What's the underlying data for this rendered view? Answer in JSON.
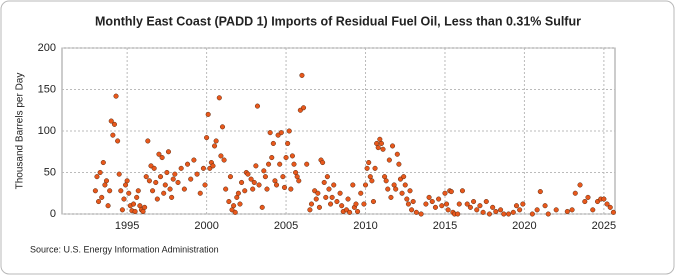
{
  "chart_data": {
    "type": "scatter",
    "title": "Monthly East Coast (PADD 1) Imports of Residual Fuel Oil, Less than 0.31% Sulfur",
    "y_label": "Thousand Barrels per Day",
    "source": "Source: U.S. Energy Information Administration",
    "color": "#e8581c",
    "grid": true,
    "xlim": [
      1990.9,
      2025.7
    ],
    "xticks": [
      1995,
      2000,
      2005,
      2010,
      2015,
      2020,
      2025
    ],
    "ylim": [
      0,
      200
    ],
    "yticks": [
      0,
      50,
      100,
      150,
      200
    ],
    "x": [
      1993.0,
      1993.1,
      1993.2,
      1993.3,
      1993.4,
      1993.5,
      1993.6,
      1993.7,
      1993.8,
      1993.9,
      1994.0,
      1994.1,
      1994.2,
      1994.3,
      1994.4,
      1994.5,
      1994.6,
      1994.7,
      1994.8,
      1994.9,
      1995.0,
      1995.1,
      1995.2,
      1995.3,
      1995.4,
      1995.5,
      1995.6,
      1995.7,
      1995.8,
      1995.9,
      1996.0,
      1996.1,
      1996.2,
      1996.3,
      1996.4,
      1996.5,
      1996.6,
      1996.7,
      1996.8,
      1996.9,
      1997.0,
      1997.1,
      1997.2,
      1997.3,
      1997.4,
      1997.5,
      1997.6,
      1997.7,
      1997.8,
      1997.9,
      1998.0,
      1998.2,
      1998.4,
      1998.6,
      1998.8,
      1999.0,
      1999.2,
      1999.4,
      1999.6,
      1999.8,
      1999.9,
      2000.0,
      2000.1,
      2000.2,
      2000.3,
      2000.4,
      2000.5,
      2000.6,
      2000.8,
      2000.9,
      2001.0,
      2001.1,
      2001.2,
      2001.4,
      2001.5,
      2001.6,
      2001.7,
      2001.8,
      2001.9,
      2002.0,
      2002.1,
      2002.2,
      2002.4,
      2002.5,
      2002.6,
      2002.8,
      2002.9,
      2003.0,
      2003.1,
      2003.2,
      2003.3,
      2003.5,
      2003.6,
      2003.7,
      2003.8,
      2003.9,
      2004.0,
      2004.1,
      2004.2,
      2004.3,
      2004.4,
      2004.5,
      2004.6,
      2004.7,
      2004.8,
      2004.9,
      2005.0,
      2005.1,
      2005.2,
      2005.3,
      2005.4,
      2005.5,
      2005.6,
      2005.7,
      2005.8,
      2005.9,
      2006.0,
      2006.1,
      2006.3,
      2006.5,
      2006.6,
      2006.8,
      2006.9,
      2007.0,
      2007.1,
      2007.2,
      2007.3,
      2007.4,
      2007.5,
      2007.6,
      2007.7,
      2007.8,
      2007.9,
      2008.0,
      2008.2,
      2008.4,
      2008.5,
      2008.6,
      2008.8,
      2008.9,
      2009.0,
      2009.2,
      2009.3,
      2009.4,
      2009.5,
      2009.7,
      2009.9,
      2010.0,
      2010.1,
      2010.2,
      2010.3,
      2010.4,
      2010.5,
      2010.6,
      2010.7,
      2010.8,
      2010.9,
      2011.0,
      2011.1,
      2011.2,
      2011.3,
      2011.4,
      2011.5,
      2011.6,
      2011.7,
      2011.8,
      2011.9,
      2012.0,
      2012.1,
      2012.2,
      2012.3,
      2012.4,
      2012.5,
      2012.6,
      2012.7,
      2012.8,
      2012.9,
      2013.0,
      2013.2,
      2013.5,
      2013.8,
      2014.0,
      2014.2,
      2014.4,
      2014.6,
      2014.8,
      2015.0,
      2015.1,
      2015.2,
      2015.3,
      2015.4,
      2015.5,
      2015.6,
      2015.8,
      2015.9,
      2016.1,
      2016.4,
      2016.6,
      2016.8,
      2017.0,
      2017.2,
      2017.4,
      2017.6,
      2017.8,
      2018.0,
      2018.2,
      2018.5,
      2018.7,
      2019.0,
      2019.3,
      2019.5,
      2019.7,
      2019.9,
      2020.5,
      2020.8,
      2021.0,
      2021.3,
      2021.5,
      2022.0,
      2022.7,
      2023.0,
      2023.2,
      2023.5,
      2023.8,
      2024.0,
      2024.3,
      2024.6,
      2024.8,
      2025.0,
      2025.2,
      2025.4,
      2025.6
    ],
    "values": [
      28,
      45,
      15,
      50,
      20,
      62,
      35,
      40,
      10,
      28,
      112,
      95,
      108,
      142,
      88,
      48,
      28,
      5,
      18,
      35,
      40,
      25,
      10,
      4,
      12,
      3,
      20,
      28,
      10,
      5,
      3,
      8,
      45,
      88,
      40,
      58,
      28,
      55,
      38,
      18,
      72,
      45,
      68,
      25,
      35,
      50,
      75,
      30,
      20,
      42,
      48,
      38,
      55,
      30,
      60,
      42,
      65,
      48,
      25,
      55,
      35,
      92,
      120,
      55,
      62,
      58,
      82,
      88,
      140,
      70,
      105,
      65,
      30,
      15,
      45,
      5,
      10,
      2,
      20,
      25,
      12,
      38,
      28,
      50,
      48,
      42,
      30,
      38,
      58,
      130,
      35,
      8,
      52,
      45,
      30,
      60,
      98,
      68,
      85,
      40,
      35,
      95,
      60,
      98,
      45,
      32,
      68,
      85,
      100,
      30,
      70,
      60,
      50,
      45,
      40,
      125,
      167,
      128,
      60,
      5,
      12,
      28,
      18,
      25,
      8,
      65,
      62,
      38,
      20,
      45,
      30,
      12,
      20,
      35,
      15,
      25,
      10,
      3,
      5,
      18,
      2,
      35,
      8,
      12,
      3,
      25,
      12,
      35,
      55,
      62,
      45,
      40,
      15,
      55,
      85,
      80,
      90,
      85,
      78,
      45,
      40,
      30,
      65,
      20,
      82,
      35,
      30,
      72,
      60,
      42,
      25,
      45,
      35,
      18,
      12,
      28,
      5,
      15,
      2,
      0,
      12,
      20,
      15,
      8,
      18,
      10,
      25,
      12,
      5,
      28,
      27,
      2,
      0,
      0,
      12,
      28,
      12,
      8,
      15,
      5,
      10,
      2,
      15,
      0,
      8,
      3,
      5,
      0,
      0,
      2,
      10,
      5,
      12,
      0,
      5,
      27,
      10,
      0,
      5,
      3,
      5,
      25,
      35,
      15,
      20,
      5,
      15,
      18,
      18,
      12,
      8,
      2
    ]
  }
}
